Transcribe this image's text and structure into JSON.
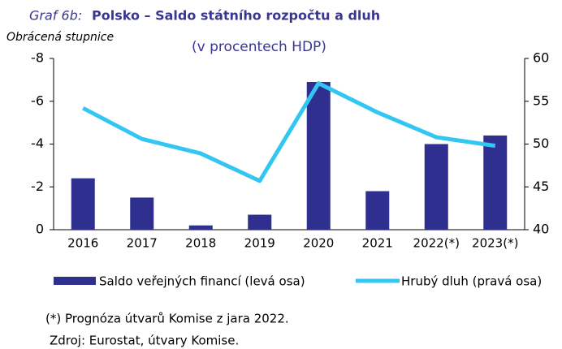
{
  "chart_data": {
    "type": "combo",
    "title_prefix": "Graf 6b:",
    "title": "Polsko – Saldo státního rozpočtu a dluh",
    "subtitle": "(v procentech HDP)",
    "y_label": "Obrácená stupnice",
    "categories": [
      "2016",
      "2017",
      "2018",
      "2019",
      "2020",
      "2021",
      "2022(*)",
      "2023(*)"
    ],
    "series": [
      {
        "name": "Saldo veřejných financí (levá osa)",
        "type": "bar",
        "color": "#2f2f8f",
        "values": [
          -2.4,
          -1.5,
          -0.2,
          -0.7,
          -6.9,
          -1.8,
          -4.0,
          -4.4
        ]
      },
      {
        "name": "Hrubý dluh (pravá osa)",
        "type": "line",
        "axis": "y2",
        "color": "#33c6f2",
        "values": [
          54.2,
          50.6,
          48.9,
          45.7,
          57.1,
          53.7,
          50.8,
          49.8
        ]
      }
    ],
    "ylim": [
      0,
      -8
    ],
    "yticks": [
      -8,
      -6,
      -4,
      -2,
      0
    ],
    "y2lim": [
      40,
      60
    ],
    "y2ticks": [
      40,
      45,
      50,
      55,
      60
    ],
    "notes": [
      "(*) Prognóza útvarů Komise z jara 2022.",
      "Zdroj: Eurostat, útvary Komise."
    ]
  }
}
